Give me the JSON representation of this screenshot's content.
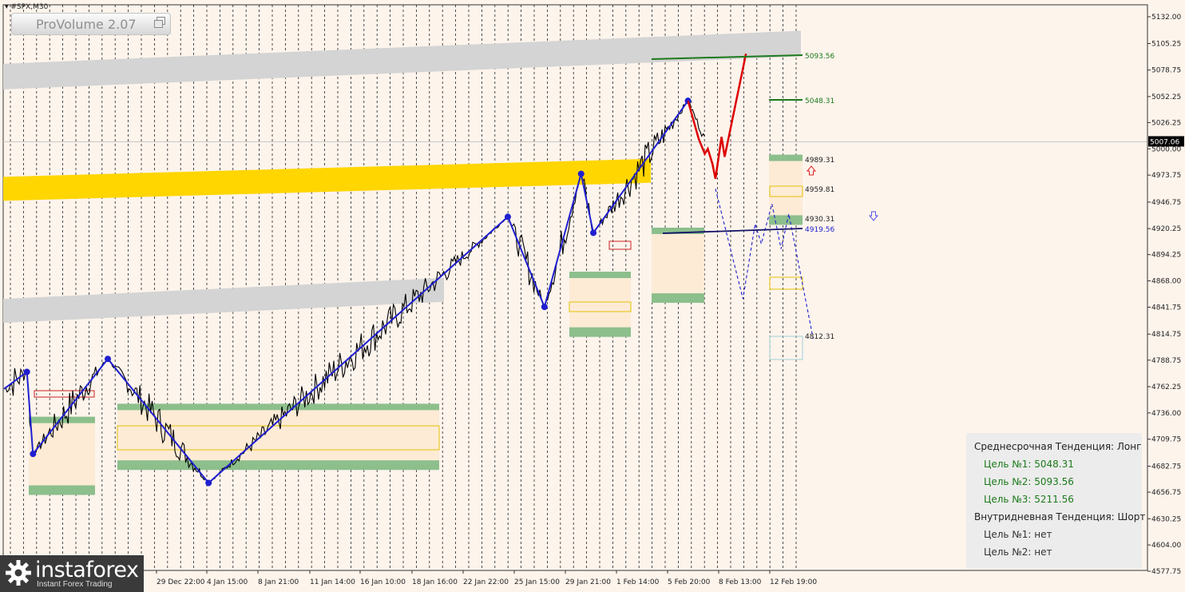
{
  "symbol": "#SPX,M30",
  "indicator": {
    "name": "ProVolume 2.07",
    "icon": "window-restore-icon"
  },
  "colors": {
    "background": "#fdf4ec",
    "price": "#000000",
    "zigzag": "#1f1fd0",
    "forecast_up": "#dd0000",
    "forecast_down": "#1f1fd0",
    "volume_zone": "#fdebd6",
    "zone_edge": "#8cbf8c",
    "gold_band": "#ffd600",
    "grey_band": "#d4d4d4"
  },
  "chart_data": {
    "type": "line",
    "title": "",
    "ylim": [
      4572,
      5145
    ],
    "y_ticks": [
      "5132.00",
      "5105.25",
      "5078.75",
      "5052.25",
      "5026.25",
      "5000.00",
      "4973.75",
      "4946.75",
      "4920.25",
      "4894.25",
      "4868.00",
      "4841.75",
      "4814.75",
      "4788.75",
      "4762.25",
      "4736.00",
      "4709.75",
      "4682.75",
      "4656.75",
      "4630.25",
      "4604.00",
      "4577.75"
    ],
    "x_ticks": [
      "29 Dec 22:00",
      "4 Jan 15:00",
      "8 Jan 21:00",
      "11 Jan 14:00",
      "16 Jan 10:00",
      "18 Jan 16:00",
      "22 Jan 22:00",
      "25 Jan 15:00",
      "29 Jan 21:00",
      "1 Feb 14:00",
      "5 Feb 20:00",
      "8 Feb 13:00",
      "12 Feb 19:00"
    ],
    "current_price": "5007.06",
    "zigzag_points": [
      {
        "bar": 0,
        "price": 4760
      },
      {
        "bar": 15,
        "price": 4777
      },
      {
        "bar": 19,
        "price": 4695
      },
      {
        "bar": 68,
        "price": 4790
      },
      {
        "bar": 134,
        "price": 4666
      },
      {
        "bar": 330,
        "price": 4932
      },
      {
        "bar": 354,
        "price": 4842
      },
      {
        "bar": 378,
        "price": 4975
      },
      {
        "bar": 386,
        "price": 4916
      },
      {
        "bar": 448,
        "price": 5048
      }
    ],
    "price_levels": [
      {
        "label": "5093.56",
        "color": "#1c7a1c"
      },
      {
        "label": "5048.31",
        "color": "#1c7a1c"
      },
      {
        "label": "4989.31",
        "color": "#222222"
      },
      {
        "label": "4959.81",
        "color": "#222222"
      },
      {
        "label": "4930.31",
        "color": "#222222"
      },
      {
        "label": "4919.56",
        "color": "#1f1fd0"
      },
      {
        "label": "4812.31",
        "color": "#222222"
      }
    ],
    "forecast_up": [
      {
        "bar": 448,
        "price": 5048
      },
      {
        "bar": 455,
        "price": 5010
      },
      {
        "bar": 459,
        "price": 4995
      },
      {
        "bar": 461,
        "price": 5000
      },
      {
        "bar": 464,
        "price": 4985
      },
      {
        "bar": 466,
        "price": 4970
      },
      {
        "bar": 470,
        "price": 5012
      },
      {
        "bar": 472,
        "price": 4992
      },
      {
        "bar": 486,
        "price": 5095
      }
    ],
    "forecast_down": [
      {
        "bar": 466,
        "price": 4960
      },
      {
        "bar": 484,
        "price": 4850
      },
      {
        "bar": 492,
        "price": 4925
      },
      {
        "bar": 496,
        "price": 4905
      },
      {
        "bar": 503,
        "price": 4945
      },
      {
        "bar": 509,
        "price": 4900
      },
      {
        "bar": 514,
        "price": 4935
      },
      {
        "bar": 530,
        "price": 4810
      }
    ]
  },
  "panel": {
    "mid_trend": "Среднесрочная Тенденция: Лонг",
    "mid_targets": [
      "Цель №1: 5048.31",
      "Цель №2: 5093.56",
      "Цель №3: 5211.56"
    ],
    "intra_trend": "Внутридневная Тенденция: Шорт",
    "intra_targets": [
      "Цель №1: нет",
      "Цель №2: нет"
    ],
    "color_mid_target": "#1c7a1c",
    "color_intra_target": "#333333"
  },
  "logo": {
    "brand": "instaforex",
    "tagline": "Instant Forex Trading",
    "icon": "gear-logo-icon"
  }
}
